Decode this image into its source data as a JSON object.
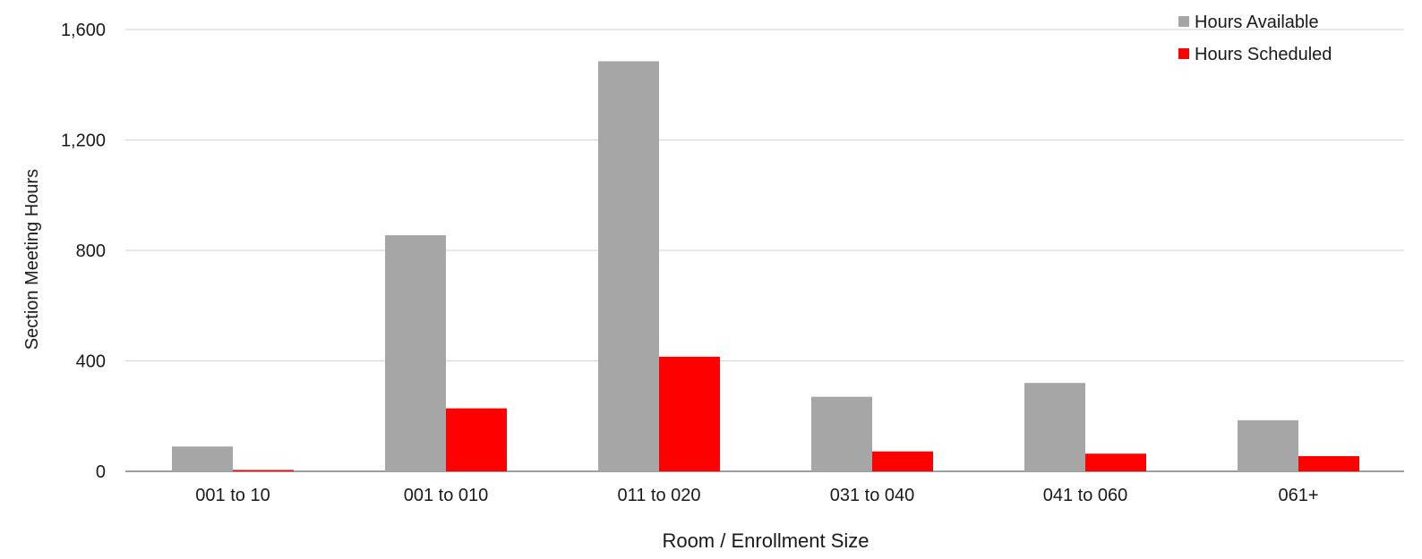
{
  "chart_data": {
    "type": "bar",
    "title": "",
    "xlabel": "Room / Enrollment Size",
    "ylabel": "Section Meeting Hours",
    "categories": [
      "001 to 10",
      "001 to 010",
      "011 to 020",
      "031 to 040",
      "041 to 060",
      "061+"
    ],
    "series": [
      {
        "name": "Hours Available",
        "color": "#a6a6a6",
        "values": [
          90,
          855,
          1485,
          270,
          320,
          185
        ]
      },
      {
        "name": "Hours Scheduled",
        "color": "#ff0000",
        "values": [
          5,
          228,
          415,
          72,
          64,
          55
        ]
      }
    ],
    "ylim": [
      0,
      1600
    ],
    "yticks": [
      0,
      400,
      800,
      1200,
      1600
    ],
    "ytick_labels": [
      "0",
      "400",
      "800",
      "1,200",
      "1,600"
    ],
    "grid": true,
    "legend_position": "top-right"
  }
}
